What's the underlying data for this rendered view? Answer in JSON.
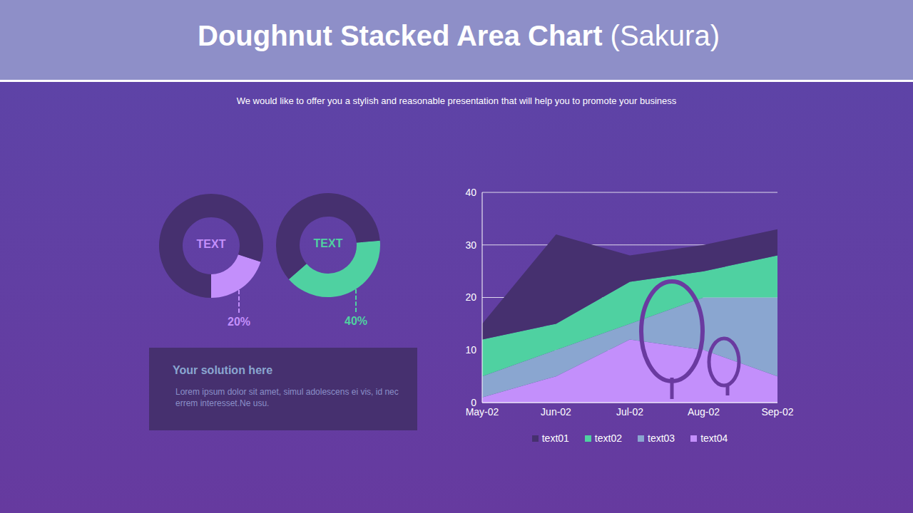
{
  "title": "Doughnut Stacked Area Chart",
  "title_note": "(Sakura)",
  "subtitle": "We would like to offer you a stylish and reasonable presentation that will help you to promote your business",
  "textbox": {
    "title": "Your solution here",
    "body": "Lorem ipsum dolor sit amet, simul adolescens ei vis, id nec errem interesset.Ne usu."
  },
  "chart_data": [
    {
      "type": "doughnut",
      "center_label": "TEXT",
      "values": [
        20,
        80
      ],
      "value_labels": [
        "20%",
        null
      ],
      "colors": [
        "#c38ffb",
        "#46306f"
      ]
    },
    {
      "type": "doughnut",
      "center_label": "TEXT",
      "values": [
        40,
        60
      ],
      "value_labels": [
        "40%",
        null
      ],
      "colors": [
        "#4fd1a1",
        "#46306f"
      ]
    },
    {
      "type": "area",
      "stacked": true,
      "categories": [
        "May-02",
        "Jun-02",
        "Jul-02",
        "Aug-02",
        "Sep-02"
      ],
      "series": [
        {
          "name": "text01",
          "color": "#46306f",
          "values": [
            3,
            17,
            5,
            5,
            5
          ]
        },
        {
          "name": "text02",
          "color": "#4fd1a1",
          "values": [
            7,
            5,
            8,
            5,
            8
          ]
        },
        {
          "name": "text03",
          "color": "#8aa6d0",
          "values": [
            4,
            5,
            3,
            10,
            15
          ]
        },
        {
          "name": "text04",
          "color": "#c38ffb",
          "values": [
            1,
            5,
            12,
            10,
            5
          ]
        }
      ],
      "ylim": [
        0,
        40
      ],
      "yticks": [
        0,
        10,
        20,
        30,
        40
      ],
      "grid": true,
      "legend": "bottom"
    }
  ]
}
